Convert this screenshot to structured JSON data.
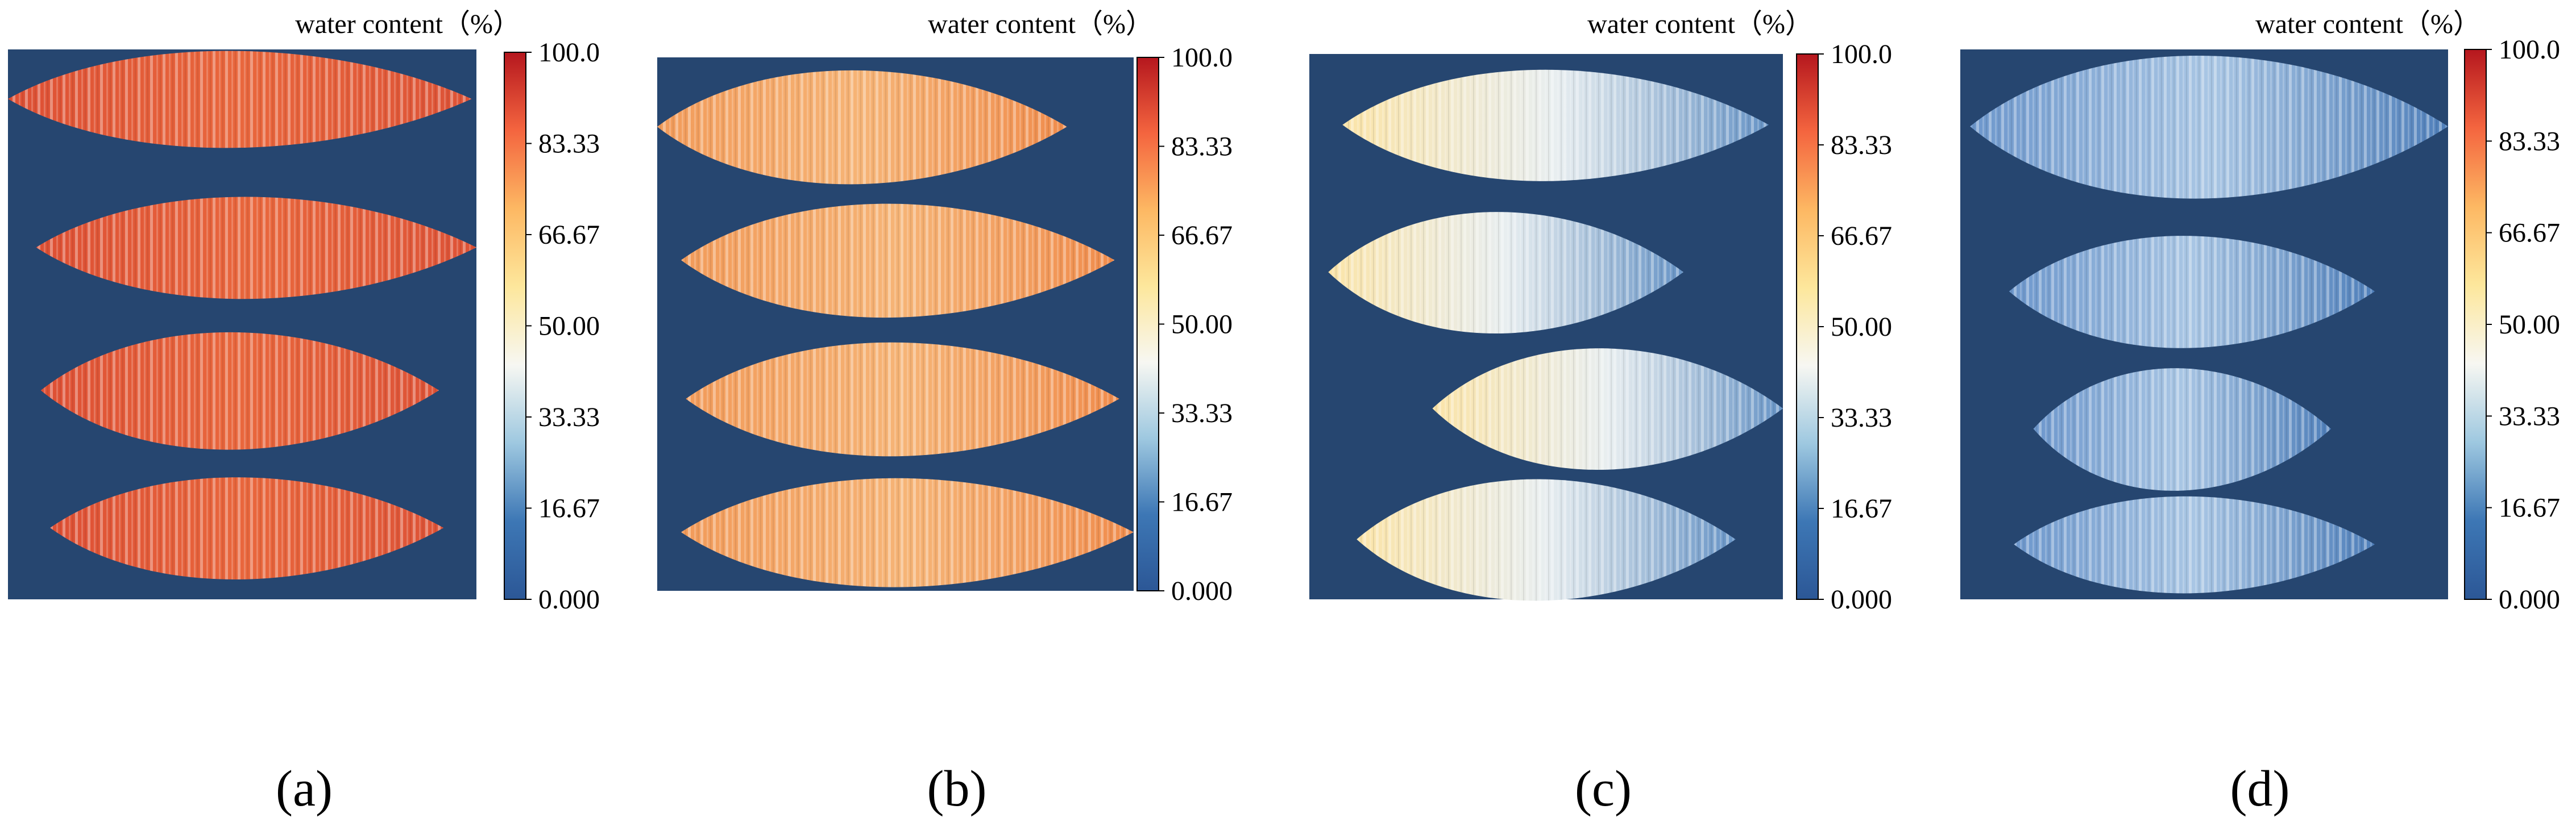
{
  "chart_data": [
    {
      "type": "heatmap",
      "label": "(a)",
      "colorbar_label": "water content（%）",
      "ylim": [
        0,
        100
      ],
      "yticks": [
        {
          "value": 0,
          "label": "0.000"
        },
        16.67,
        33.33,
        {
          "value": 50,
          "label": "50.00"
        },
        66.67,
        83.33,
        {
          "value": 100,
          "label": "100.0"
        }
      ],
      "colormap": [
        "#2c5796",
        "#3d77b5",
        "#9ec8e0",
        "#f7f7f2",
        "#fde79c",
        "#fdb863",
        "#f4653f",
        "#b5171e"
      ]
    },
    {
      "type": "heatmap",
      "label": "(b)",
      "colorbar_label": "water content（%）",
      "ylim": [
        0,
        100
      ],
      "yticks": [
        {
          "value": 0,
          "label": "0.000"
        },
        16.67,
        33.33,
        {
          "value": 50,
          "label": "50.00"
        },
        66.67,
        83.33,
        {
          "value": 100,
          "label": "100.0"
        }
      ],
      "colormap": [
        "#2c5796",
        "#3d77b5",
        "#9ec8e0",
        "#f7f7f2",
        "#fde79c",
        "#fdb863",
        "#f4653f",
        "#b5171e"
      ]
    },
    {
      "type": "heatmap",
      "label": "(c)",
      "colorbar_label": "water content（%）",
      "ylim": [
        0,
        100
      ],
      "yticks": [
        {
          "value": 0,
          "label": "0.000"
        },
        16.67,
        33.33,
        {
          "value": 50,
          "label": "50.00"
        },
        66.67,
        83.33,
        {
          "value": 100,
          "label": "100.0"
        }
      ],
      "colormap": [
        "#2c5796",
        "#3d77b5",
        "#9ec8e0",
        "#f7f7f2",
        "#fde79c",
        "#fdb863",
        "#f4653f",
        "#b5171e"
      ]
    },
    {
      "type": "heatmap",
      "label": "(d)",
      "colorbar_label": "water content（%）",
      "ylim": [
        0,
        100
      ],
      "yticks": [
        {
          "value": 0,
          "label": "0.000"
        },
        16.67,
        33.33,
        {
          "value": 50,
          "label": "50.00"
        },
        66.67,
        83.33,
        {
          "value": 100,
          "label": "100.0"
        }
      ],
      "colormap": [
        "#2c5796",
        "#3d77b5",
        "#9ec8e0",
        "#f7f7f2",
        "#fde79c",
        "#fdb863",
        "#f4653f",
        "#b5171e"
      ]
    }
  ]
}
